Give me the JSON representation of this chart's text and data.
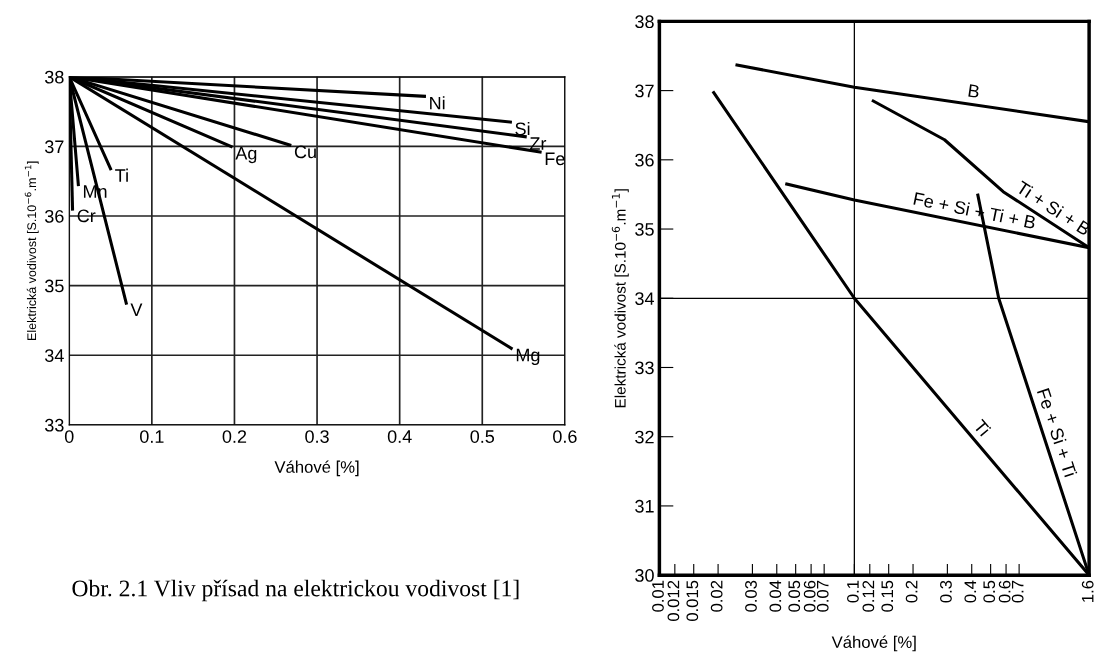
{
  "chart_data": [
    {
      "type": "line",
      "xlabel": "Váhové [%]",
      "ylabel": "Elektrická vodivost [S.10$^{−6}$.m$^{−1}$]",
      "xlim": [
        0,
        0.6
      ],
      "ylim": [
        33,
        38
      ],
      "xticks": [
        0,
        0.1,
        0.2,
        0.3,
        0.4,
        0.5,
        0.6
      ],
      "yticks": [
        33,
        34,
        35,
        36,
        37,
        38
      ],
      "grid": true,
      "annotations": [
        "Obr. 2.1 Vliv přísad na elektrickou vodivost [1]"
      ],
      "series": [
        {
          "name": "Ni",
          "color": "#000000",
          "x": [
            0,
            0.43
          ],
          "values": [
            38,
            37.72
          ]
        },
        {
          "name": "Si",
          "color": "#000000",
          "x": [
            0,
            0.534
          ],
          "values": [
            38,
            37.35
          ]
        },
        {
          "name": "Zr",
          "color": "#000000",
          "x": [
            0,
            0.552
          ],
          "values": [
            38,
            37.14
          ]
        },
        {
          "name": "Fe",
          "color": "#000000",
          "x": [
            0,
            0.57
          ],
          "values": [
            38,
            36.92
          ]
        },
        {
          "name": "Ag",
          "color": "#000000",
          "x": [
            0,
            0.196
          ],
          "values": [
            38,
            37.0
          ]
        },
        {
          "name": "Cu",
          "color": "#000000",
          "x": [
            0,
            0.267
          ],
          "values": [
            38,
            37.02
          ]
        },
        {
          "name": "Ti",
          "color": "#000000",
          "x": [
            0,
            0.05
          ],
          "values": [
            38,
            36.68
          ]
        },
        {
          "name": "Mn",
          "color": "#000000",
          "x": [
            0,
            0.011
          ],
          "values": [
            38,
            36.45
          ]
        },
        {
          "name": "Cr",
          "color": "#000000",
          "x": [
            0,
            0.004
          ],
          "values": [
            38,
            36.1
          ]
        },
        {
          "name": "V",
          "color": "#000000",
          "x": [
            0,
            0.069
          ],
          "values": [
            38,
            34.75
          ]
        },
        {
          "name": "Mg",
          "color": "#000000",
          "x": [
            0,
            0.535
          ],
          "values": [
            38,
            34.1
          ]
        }
      ]
    },
    {
      "type": "line",
      "xlabel": "Váhové [%]",
      "ylabel": "Elektrická vodivost [S.10$^{−6}$.m$^{−1}$]",
      "log": "x",
      "xlim": [
        0.01,
        1.6
      ],
      "ylim": [
        30,
        38
      ],
      "xticks": [
        0.01,
        0.012,
        0.015,
        0.02,
        0.03,
        0.04,
        0.05,
        0.06,
        0.07,
        0.1,
        0.12,
        0.15,
        0.2,
        0.3,
        0.4,
        0.5,
        0.6,
        0.7,
        1.6
      ],
      "yticks": [
        30,
        31,
        32,
        33,
        34,
        35,
        36,
        37,
        38
      ],
      "grid": false,
      "ref_lines": [
        {
          "axis": "x",
          "value": 0.1,
          "color": "#000000"
        },
        {
          "axis": "y",
          "value": 34,
          "color": "#000000"
        }
      ],
      "series": [
        {
          "name": "B",
          "color": "#000000",
          "x": [
            0.025,
            0.1,
            1.6
          ],
          "values": [
            37.37,
            37.05,
            36.55
          ]
        },
        {
          "name": "Ti + Si + B",
          "color": "#000000",
          "x": [
            0.125,
            0.29,
            0.58,
            1.6
          ],
          "values": [
            36.85,
            36.29,
            35.54,
            34.73
          ]
        },
        {
          "name": "Fe + Si + Ti + B",
          "color": "#000000",
          "x": [
            0.045,
            0.1,
            1.6
          ],
          "values": [
            35.65,
            35.42,
            34.73
          ]
        },
        {
          "name": "Fe + Si + Ti",
          "color": "#000000",
          "x": [
            0.43,
            0.55,
            1.6
          ],
          "values": [
            35.49,
            34.0,
            30
          ]
        },
        {
          "name": "Ti",
          "color": "#000000",
          "x": [
            0.019,
            0.1,
            1.6
          ],
          "values": [
            36.97,
            34.0,
            30
          ]
        }
      ]
    }
  ]
}
